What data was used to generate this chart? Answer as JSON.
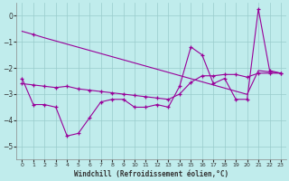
{
  "x": [
    0,
    1,
    2,
    3,
    4,
    5,
    6,
    7,
    8,
    9,
    10,
    11,
    12,
    13,
    14,
    15,
    16,
    17,
    18,
    19,
    20,
    21,
    22,
    23
  ],
  "line_zigzag": [
    -2.4,
    -3.4,
    -3.4,
    -3.5,
    -4.6,
    -4.5,
    -3.9,
    -3.3,
    -3.2,
    -3.2,
    -3.5,
    -3.5,
    -3.4,
    -3.5,
    -2.7,
    -1.2,
    -1.5,
    -2.6,
    -2.4,
    -3.2,
    -3.2,
    0.25,
    -2.1,
    -2.2
  ],
  "line_straight": [
    -0.6,
    -0.72,
    -0.85,
    -0.97,
    -1.09,
    -1.21,
    -1.33,
    -1.45,
    -1.57,
    -1.69,
    -1.81,
    -1.93,
    -2.05,
    -2.17,
    -2.29,
    -2.41,
    -2.53,
    -2.65,
    -2.77,
    -2.89,
    -3.01,
    -2.1,
    -2.15,
    -2.2
  ],
  "line_mid": [
    -2.6,
    -2.65,
    -2.7,
    -2.75,
    -2.7,
    -2.8,
    -2.85,
    -2.9,
    -2.95,
    -3.0,
    -3.05,
    -3.1,
    -3.15,
    -3.2,
    -3.0,
    -2.55,
    -2.3,
    -2.3,
    -2.25,
    -2.25,
    -2.35,
    -2.2,
    -2.2,
    -2.2
  ],
  "background_color": "#c0ecec",
  "line_color": "#990099",
  "grid_color": "#99cccc",
  "xlabel": "Windchill (Refroidissement éolien,°C)",
  "ylim": [
    -5.5,
    0.5
  ],
  "xlim": [
    -0.5,
    23.5
  ],
  "yticks": [
    0,
    -1,
    -2,
    -3,
    -4,
    -5
  ],
  "xtick_labels": [
    "0",
    "1",
    "2",
    "3",
    "4",
    "5",
    "6",
    "7",
    "8",
    "9",
    "10",
    "11",
    "12",
    "13",
    "14",
    "15",
    "16",
    "17",
    "18",
    "19",
    "20",
    "21",
    "22",
    "23"
  ]
}
